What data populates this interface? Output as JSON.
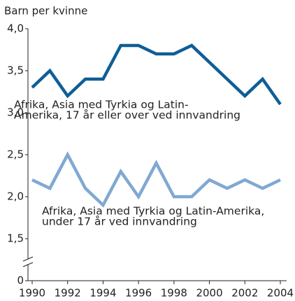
{
  "chart_data": {
    "type": "line",
    "y_label": "Barn per kvinne",
    "x": [
      1990,
      1991,
      1992,
      1993,
      1994,
      1995,
      1996,
      1997,
      1998,
      1999,
      2000,
      2001,
      2002,
      2003,
      2004
    ],
    "series": [
      {
        "name": [
          "Afrika, Asia med Tyrkia og Latin-",
          "Amerika, 17 år eller over ved innvandring"
        ],
        "color": "#0f5e96",
        "values": [
          3.3,
          3.5,
          3.2,
          3.4,
          3.4,
          3.8,
          3.8,
          3.7,
          3.7,
          3.8,
          3.6,
          3.4,
          3.2,
          3.4,
          3.1
        ]
      },
      {
        "name": [
          "Afrika, Asia med Tyrkia og Latin-Amerika,",
          "under 17 år ved innvandring"
        ],
        "color": "#80a8d2",
        "values": [
          2.2,
          2.1,
          2.5,
          2.1,
          1.9,
          2.3,
          2.0,
          2.4,
          2.0,
          2.0,
          2.2,
          2.1,
          2.2,
          2.1,
          2.2
        ]
      }
    ],
    "xlim": [
      1990,
      2004
    ],
    "xticks": [
      1990,
      1992,
      1994,
      1996,
      1998,
      2000,
      2002,
      2004
    ],
    "ylim": [
      0,
      4
    ],
    "yticks": [
      0,
      {
        "value": 1.5,
        "label": "1,5"
      },
      {
        "value": 2,
        "label": "2,0"
      },
      {
        "value": 2.5,
        "label": "2,5"
      },
      {
        "value": 3,
        "label": "3,0"
      },
      {
        "value": 3.5,
        "label": "3,5"
      },
      {
        "value": 4,
        "label": "4,0"
      }
    ],
    "axis_break": true,
    "grid": false
  }
}
